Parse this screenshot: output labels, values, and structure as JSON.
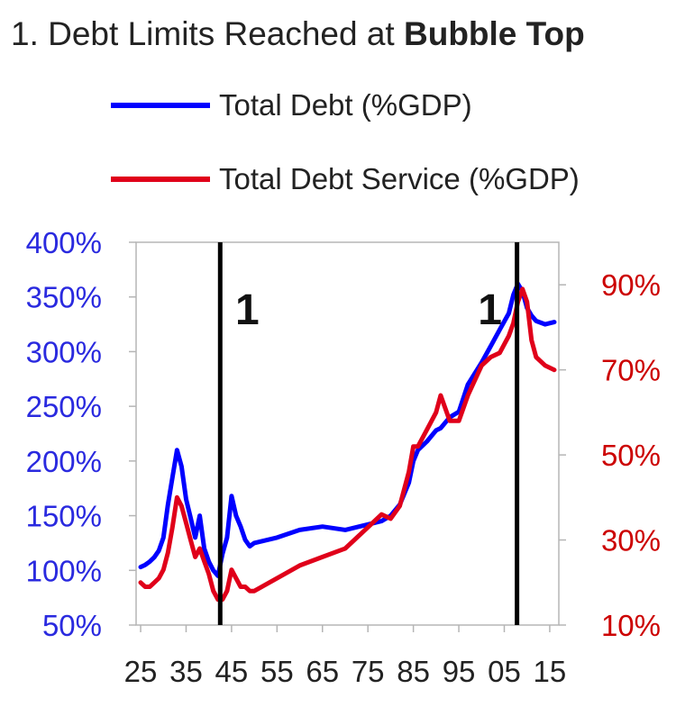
{
  "chart_data": {
    "type": "line",
    "title_prefix": "1. Debt Limits Reached at ",
    "title_bold": "Bubble Top",
    "x": [
      1925,
      1926,
      1927,
      1928,
      1929,
      1930,
      1931,
      1932,
      1933,
      1934,
      1935,
      1936,
      1937,
      1938,
      1939,
      1940,
      1941,
      1942,
      1943,
      1944,
      1945,
      1946,
      1947,
      1948,
      1949,
      1950,
      1955,
      1960,
      1965,
      1970,
      1975,
      1978,
      1980,
      1982,
      1984,
      1985,
      1986,
      1988,
      1990,
      1991,
      1993,
      1995,
      1997,
      2000,
      2002,
      2004,
      2006,
      2007,
      2008,
      2009,
      2010,
      2011,
      2012,
      2014,
      2016
    ],
    "series": [
      {
        "name": "Total Debt (%GDP)",
        "axis": "left",
        "color": "#0000ff",
        "values": [
          103,
          105,
          108,
          112,
          118,
          130,
          160,
          185,
          210,
          195,
          165,
          148,
          130,
          150,
          120,
          108,
          100,
          95,
          115,
          130,
          168,
          150,
          140,
          128,
          122,
          125,
          130,
          137,
          140,
          137,
          142,
          145,
          150,
          160,
          180,
          200,
          210,
          218,
          228,
          230,
          240,
          245,
          270,
          290,
          305,
          320,
          335,
          352,
          362,
          355,
          340,
          333,
          328,
          325,
          327
        ]
      },
      {
        "name": "Total Debt Service (%GDP)",
        "axis": "right",
        "color": "#e0001a",
        "values": [
          20,
          19,
          19,
          20,
          21,
          23,
          27,
          33,
          40,
          38,
          34,
          30,
          26,
          28,
          25,
          22,
          18,
          16,
          16,
          18,
          23,
          21,
          19,
          19,
          18,
          18,
          21,
          24,
          26,
          28,
          33,
          36,
          35,
          38,
          46,
          52,
          52,
          56,
          60,
          64,
          58,
          58,
          64,
          71,
          73,
          74,
          78,
          81,
          86,
          89,
          86,
          77,
          73,
          71,
          70
        ]
      }
    ],
    "x_ticks": [
      "25",
      "35",
      "45",
      "55",
      "65",
      "75",
      "85",
      "95",
      "05",
      "15"
    ],
    "x_tick_values": [
      1925,
      1935,
      1945,
      1955,
      1965,
      1975,
      1985,
      1995,
      2005,
      2015
    ],
    "left_ticks": [
      "50%",
      "100%",
      "150%",
      "200%",
      "250%",
      "300%",
      "350%",
      "400%"
    ],
    "left_tick_values": [
      50,
      100,
      150,
      200,
      250,
      300,
      350,
      400
    ],
    "right_ticks": [
      "10%",
      "30%",
      "50%",
      "70%",
      "90%"
    ],
    "right_tick_values": [
      10,
      30,
      50,
      70,
      90
    ],
    "xlim": [
      1924,
      2017
    ],
    "ylim_left": [
      50,
      400
    ],
    "ylim_right": [
      10,
      100
    ],
    "vlines": [
      {
        "x": 1942.5,
        "label": "1"
      },
      {
        "x": 2007.8,
        "label": "1"
      }
    ],
    "colors": {
      "left_axis": "#2a2adf",
      "right_axis": "#cc0000",
      "text": "#222222"
    },
    "grid": false,
    "legend": "top-center"
  }
}
